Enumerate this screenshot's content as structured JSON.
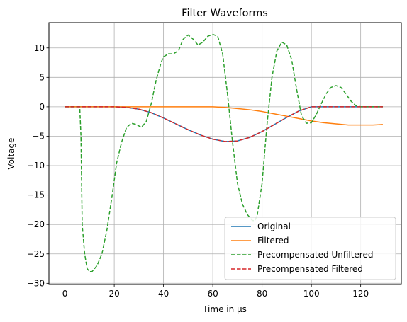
{
  "chart_data": {
    "type": "line",
    "title": "Filter Waveforms",
    "xlabel": "Time in µs",
    "ylabel": "Voltage",
    "xlim": [
      -6.5,
      136.5
    ],
    "ylim": [
      -30.2,
      14.3
    ],
    "xticks": [
      0,
      20,
      40,
      60,
      80,
      100,
      120
    ],
    "yticks": [
      10,
      5,
      0,
      -5,
      -10,
      -15,
      -20,
      -25,
      -30
    ],
    "grid": true,
    "legend_position": "lower-right",
    "series": [
      {
        "name": "Original",
        "color": "#1f77b4",
        "dash": "solid",
        "x": [
          0,
          20,
          25,
          30,
          35,
          40,
          45,
          50,
          55,
          60,
          65,
          70,
          75,
          80,
          85,
          90,
          95,
          100,
          105,
          110,
          120,
          129
        ],
        "y": [
          0,
          0,
          -0.1,
          -0.4,
          -1.0,
          -1.9,
          -2.9,
          -3.9,
          -4.8,
          -5.5,
          -5.9,
          -5.8,
          -5.2,
          -4.2,
          -3.0,
          -1.8,
          -0.7,
          0,
          0,
          0,
          0,
          0
        ]
      },
      {
        "name": "Filtered",
        "color": "#ff7f0e",
        "dash": "solid",
        "x": [
          0,
          20,
          40,
          60,
          65,
          70,
          75,
          80,
          85,
          90,
          95,
          100,
          105,
          110,
          115,
          120,
          125,
          129
        ],
        "y": [
          0,
          0,
          0,
          0,
          -0.1,
          -0.3,
          -0.5,
          -0.8,
          -1.2,
          -1.6,
          -2.0,
          -2.4,
          -2.7,
          -2.9,
          -3.1,
          -3.1,
          -3.1,
          -3.0
        ]
      },
      {
        "name": "Precompensated Unfiltered",
        "color": "#2ca02c",
        "dash": "dashed",
        "x": [
          0,
          6,
          6.5,
          7,
          8,
          9,
          10,
          11,
          13,
          15,
          17,
          19,
          21,
          23,
          25,
          27,
          29,
          31,
          33,
          35,
          37,
          39,
          40,
          42,
          44,
          46,
          48,
          50,
          52,
          54,
          56,
          58,
          60,
          62,
          64,
          66,
          68,
          70,
          72,
          74,
          76,
          77,
          78,
          80,
          82,
          84,
          86,
          88,
          90,
          92,
          94,
          96,
          98,
          100,
          102,
          104,
          106,
          108,
          110,
          112,
          114,
          116,
          118,
          120,
          122,
          125,
          129
        ],
        "y": [
          0,
          0,
          -5,
          -20,
          -25,
          -27.5,
          -28,
          -28,
          -27,
          -25,
          -21,
          -15.5,
          -9.5,
          -6,
          -3.5,
          -2.8,
          -3.0,
          -3.5,
          -2.5,
          0.5,
          4.5,
          7.5,
          8.5,
          9.0,
          9.0,
          9.5,
          11.5,
          12.2,
          11.5,
          10.5,
          11,
          12,
          12.3,
          12,
          9,
          2,
          -6,
          -13,
          -16.5,
          -18.3,
          -19.3,
          -19.4,
          -18.5,
          -13,
          -3,
          5,
          9.5,
          11,
          10.5,
          8,
          3,
          -1.5,
          -2.8,
          -2.7,
          -1.3,
          0.5,
          2.2,
          3.3,
          3.6,
          3.3,
          2.2,
          1.0,
          0.2,
          0,
          0,
          0,
          0
        ]
      },
      {
        "name": "Precompensated Filtered",
        "color": "#d62728",
        "dash": "dashed",
        "x": [
          0,
          20,
          25,
          30,
          35,
          40,
          45,
          50,
          55,
          60,
          65,
          70,
          75,
          80,
          85,
          90,
          95,
          100,
          105,
          110,
          120,
          129
        ],
        "y": [
          0,
          0,
          -0.1,
          -0.4,
          -1.0,
          -1.9,
          -2.9,
          -3.9,
          -4.8,
          -5.5,
          -5.9,
          -5.8,
          -5.2,
          -4.2,
          -3.0,
          -1.8,
          -0.7,
          0,
          0,
          0,
          0,
          0
        ]
      }
    ]
  }
}
